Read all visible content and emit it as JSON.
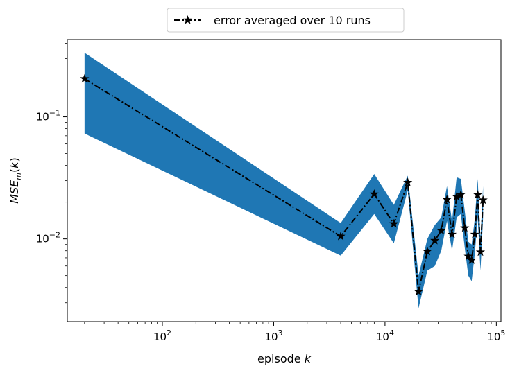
{
  "chart_data": {
    "type": "line",
    "xscale": "log",
    "yscale": "log",
    "xlabel": "episode k",
    "ylabel": "MSE_m(k)",
    "xlim": [
      14,
      110000
    ],
    "ylim": [
      0.0021,
      0.43
    ],
    "grid": false,
    "legend_position": "top-center",
    "x_ticks": [
      {
        "value": 100,
        "base": "10",
        "exp": "2"
      },
      {
        "value": 1000,
        "base": "10",
        "exp": "3"
      },
      {
        "value": 10000,
        "base": "10",
        "exp": "4"
      },
      {
        "value": 100000,
        "base": "10",
        "exp": "5"
      }
    ],
    "y_ticks": [
      {
        "value": 0.1,
        "base": "10",
        "exp": "−1"
      },
      {
        "value": 0.01,
        "base": "10",
        "exp": "−2"
      }
    ],
    "series": [
      {
        "name": "error averaged over 10 runs",
        "color": "#000000",
        "band_color": "#1f77b4",
        "line_style": "dash-dot",
        "marker": "star",
        "x": [
          20,
          4000,
          8000,
          12000,
          16000,
          20000,
          24000,
          28000,
          32000,
          36000,
          40000,
          44000,
          48000,
          52000,
          56000,
          60000,
          64000,
          68000,
          72000,
          76000
        ],
        "y": [
          0.205,
          0.0105,
          0.0233,
          0.0133,
          0.029,
          0.0037,
          0.0079,
          0.0097,
          0.0117,
          0.021,
          0.0109,
          0.0222,
          0.023,
          0.0123,
          0.0072,
          0.0067,
          0.0109,
          0.023,
          0.0078,
          0.0208
        ],
        "y_lower": [
          0.073,
          0.0073,
          0.016,
          0.0092,
          0.025,
          0.0027,
          0.0055,
          0.006,
          0.008,
          0.014,
          0.008,
          0.015,
          0.016,
          0.0085,
          0.005,
          0.0045,
          0.0075,
          0.015,
          0.0055,
          0.015
        ],
        "y_upper": [
          0.335,
          0.0135,
          0.034,
          0.019,
          0.033,
          0.005,
          0.01,
          0.013,
          0.015,
          0.027,
          0.014,
          0.032,
          0.031,
          0.017,
          0.0095,
          0.009,
          0.0145,
          0.031,
          0.01,
          0.027
        ]
      }
    ]
  }
}
